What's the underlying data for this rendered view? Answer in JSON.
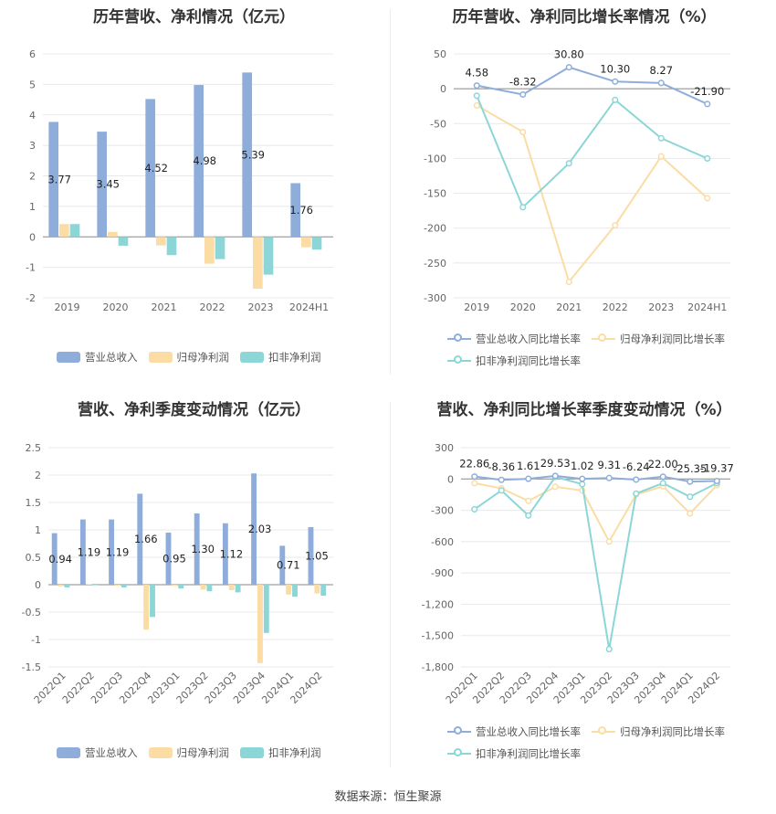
{
  "colors": {
    "revenue": "#8eaddb",
    "parent_profit": "#fbdca4",
    "deducted_profit": "#8cd6d8",
    "revenue_line": "#8eaddb",
    "parent_line": "#fbdca4",
    "deducted_line": "#8cd6d8"
  },
  "footer": "数据来源：恒生聚源",
  "chart_data": [
    {
      "id": "annual_amount",
      "type": "bar",
      "title": "历年营收、净利情况（亿元）",
      "categories": [
        "2019",
        "2020",
        "2021",
        "2022",
        "2023",
        "2024H1"
      ],
      "ylim": [
        -2,
        6
      ],
      "yticks": [
        "6",
        "5",
        "4",
        "3",
        "2",
        "1",
        "0",
        "-1",
        "-2"
      ],
      "series": [
        {
          "name": "营业总收入",
          "values": [
            3.77,
            3.45,
            4.52,
            4.98,
            5.39,
            1.76
          ],
          "labels": [
            "3.77",
            "3.45",
            "4.52",
            "4.98",
            "5.39",
            "1.76"
          ]
        },
        {
          "name": "归母净利润",
          "values": [
            0.42,
            0.16,
            -0.28,
            -0.88,
            -1.7,
            -0.34
          ]
        },
        {
          "name": "扣非净利润",
          "values": [
            0.42,
            -0.29,
            -0.6,
            -0.73,
            -1.24,
            -0.42
          ]
        }
      ],
      "legend": "bottom"
    },
    {
      "id": "annual_growth",
      "type": "line",
      "title": "历年营收、净利同比增长率情况（%）",
      "categories": [
        "2019",
        "2020",
        "2021",
        "2022",
        "2023",
        "2024H1"
      ],
      "ylim": [
        -300,
        50
      ],
      "yticks": [
        "50",
        "0",
        "-50",
        "-100",
        "-150",
        "-200",
        "-250",
        "-300"
      ],
      "series": [
        {
          "name": "营业总收入同比增长率",
          "values": [
            4.58,
            -8.32,
            30.8,
            10.3,
            8.27,
            -21.9
          ],
          "labels": [
            "4.58",
            "-8.32",
            "30.80",
            "10.30",
            "8.27",
            "-21.90"
          ]
        },
        {
          "name": "归母净利润同比增长率",
          "values": [
            -24,
            -62,
            -277,
            -196,
            -97,
            -157
          ]
        },
        {
          "name": "扣非净利润同比增长率",
          "values": [
            -10,
            -170,
            -107,
            -16,
            -71,
            -100
          ]
        }
      ],
      "legend": "bottom"
    },
    {
      "id": "quarterly_amount",
      "type": "bar",
      "title": "营收、净利季度变动情况（亿元）",
      "categories": [
        "2022Q1",
        "2022Q2",
        "2022Q3",
        "2022Q4",
        "2023Q1",
        "2023Q2",
        "2023Q3",
        "2023Q4",
        "2024Q1",
        "2024Q2"
      ],
      "ylim": [
        -1.5,
        2.5
      ],
      "yticks": [
        "2.5",
        "2",
        "1.5",
        "1",
        "0.5",
        "0",
        "-0.5",
        "-1",
        "-1.5"
      ],
      "series": [
        {
          "name": "营业总收入",
          "values": [
            0.94,
            1.19,
            1.19,
            1.66,
            0.95,
            1.3,
            1.12,
            2.03,
            0.71,
            1.05
          ],
          "labels": [
            "0.94",
            "1.19",
            "1.19",
            "1.66",
            "0.95",
            "1.30",
            "1.12",
            "2.03",
            "0.71",
            "1.05"
          ]
        },
        {
          "name": "归母净利润",
          "values": [
            -0.03,
            0.01,
            -0.02,
            -0.82,
            -0.02,
            -0.09,
            -0.1,
            -1.43,
            -0.18,
            -0.16
          ]
        },
        {
          "name": "扣非净利润",
          "values": [
            -0.05,
            -0.01,
            -0.05,
            -0.59,
            -0.07,
            -0.12,
            -0.14,
            -0.88,
            -0.22,
            -0.2
          ]
        }
      ],
      "legend": "bottom"
    },
    {
      "id": "quarterly_growth",
      "type": "line",
      "title": "营收、净利同比增长率季度变动情况（%）",
      "categories": [
        "2022Q1",
        "2022Q2",
        "2022Q3",
        "2022Q4",
        "2023Q1",
        "2023Q2",
        "2023Q3",
        "2023Q4",
        "2024Q1",
        "2024Q2"
      ],
      "ylim": [
        -1800,
        300
      ],
      "yticks": [
        "300",
        "0",
        "-300",
        "-600",
        "-900",
        "-1,200",
        "-1,500",
        "-1,800"
      ],
      "series": [
        {
          "name": "营业总收入同比增长率",
          "values": [
            22.86,
            -8.36,
            1.61,
            29.53,
            1.02,
            9.31,
            -6.24,
            22.0,
            -25.35,
            -19.37
          ],
          "labels": [
            "22.86",
            "-8.36",
            "1.61",
            "29.53",
            "1.02",
            "9.31",
            "-6.24",
            "22.00",
            "-25.35",
            "-19.37"
          ]
        },
        {
          "name": "归母净利润同比增长率",
          "values": [
            -40,
            -90,
            -210,
            -75,
            -110,
            -600,
            -150,
            -70,
            -330,
            -60
          ]
        },
        {
          "name": "扣非净利润同比增长率",
          "values": [
            -290,
            -110,
            -350,
            20,
            -50,
            -1630,
            -140,
            -40,
            -170,
            -40
          ]
        }
      ],
      "legend": "bottom"
    }
  ]
}
